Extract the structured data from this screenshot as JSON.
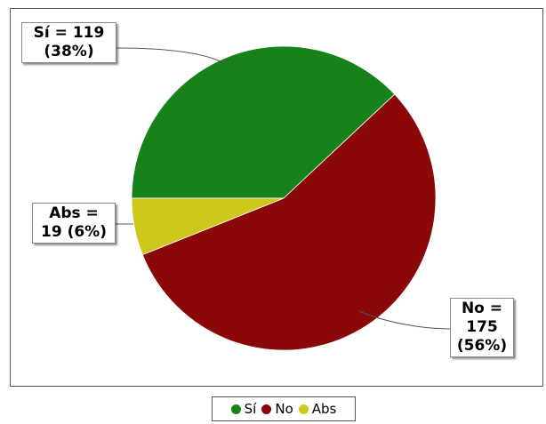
{
  "chart_data": {
    "type": "pie",
    "slices": [
      {
        "name": "Sí",
        "value": 119,
        "percent": "38%",
        "color": "#18821a",
        "label_line1": "Sí = 119",
        "label_line2": "(38%)"
      },
      {
        "name": "No",
        "value": 175,
        "percent": "56%",
        "color": "#8a0808",
        "label_line1": "No =",
        "label_line2": "175",
        "label_line3": "(56%)"
      },
      {
        "name": "Abs",
        "value": 19,
        "percent": "6%",
        "color": "#cfc81c",
        "label_line1": "Abs =",
        "label_line2": "19 (6%)"
      }
    ],
    "legend": {
      "placement": "bottom",
      "items": [
        "Sí",
        "No",
        "Abs"
      ]
    }
  }
}
